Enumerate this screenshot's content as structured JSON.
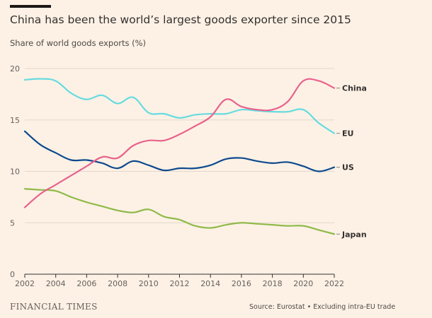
{
  "header": {
    "title": "China has been the world’s largest goods exporter since 2015",
    "subtitle": "Share of world goods exports (%)"
  },
  "footer": {
    "brand": "FINANCIAL TIMES",
    "source": "Source: Eurostat • Excluding intra-EU trade"
  },
  "colors": {
    "China": "#e8628c",
    "EU": "#66dbe0",
    "US": "#0d4a8e",
    "Japan": "#8fba4a",
    "grid": "#e2d7cb",
    "axis": "#33302e",
    "background": "#fdf1e5"
  },
  "chart_data": {
    "type": "line",
    "title": "China has been the world’s largest goods exporter since 2015",
    "subtitle": "Share of world goods exports (%)",
    "xlabel": "",
    "ylabel": "",
    "xlim": [
      2002,
      2022
    ],
    "ylim": [
      0,
      20
    ],
    "x_ticks": [
      "2002",
      "2004",
      "2006",
      "2008",
      "2010",
      "2012",
      "2014",
      "2016",
      "2018",
      "2020",
      "2022"
    ],
    "y_ticks": [
      "0",
      "5",
      "10",
      "15",
      "20"
    ],
    "grid": true,
    "legend": "direct labels at line ends",
    "x": [
      2002,
      2003,
      2004,
      2005,
      2006,
      2007,
      2008,
      2009,
      2010,
      2011,
      2012,
      2013,
      2014,
      2015,
      2016,
      2017,
      2018,
      2019,
      2020,
      2021,
      2022
    ],
    "series": [
      {
        "name": "China",
        "values": [
          6.5,
          7.8,
          8.7,
          9.6,
          10.5,
          11.4,
          11.3,
          12.5,
          13.0,
          13.0,
          13.6,
          14.4,
          15.3,
          17.0,
          16.3,
          16.0,
          16.0,
          16.8,
          18.8,
          18.8,
          18.1
        ]
      },
      {
        "name": "EU",
        "values": [
          18.9,
          19.0,
          18.8,
          17.6,
          17.0,
          17.4,
          16.6,
          17.2,
          15.7,
          15.6,
          15.2,
          15.5,
          15.6,
          15.6,
          16.0,
          15.9,
          15.8,
          15.8,
          16.0,
          14.7,
          13.7
        ]
      },
      {
        "name": "US",
        "values": [
          13.9,
          12.6,
          11.8,
          11.1,
          11.1,
          10.8,
          10.3,
          11.0,
          10.6,
          10.1,
          10.3,
          10.3,
          10.6,
          11.2,
          11.3,
          11.0,
          10.8,
          10.9,
          10.5,
          10.0,
          10.4
        ]
      },
      {
        "name": "Japan",
        "values": [
          8.3,
          8.2,
          8.1,
          7.5,
          7.0,
          6.6,
          6.2,
          6.0,
          6.3,
          5.6,
          5.3,
          4.7,
          4.5,
          4.8,
          5.0,
          4.9,
          4.8,
          4.7,
          4.7,
          4.3,
          3.9
        ]
      }
    ]
  }
}
